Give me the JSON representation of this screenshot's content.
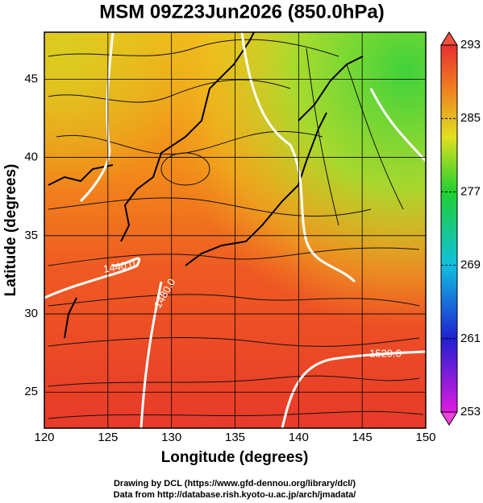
{
  "title": "MSM 09Z23Jun2026 (850.0hPa)",
  "x_label": "Longitude (degrees)",
  "y_label": "Latitude  (degrees)",
  "xlim": [
    120,
    150
  ],
  "ylim": [
    22.7,
    48
  ],
  "xticks": [
    120,
    125,
    130,
    135,
    140,
    145,
    150
  ],
  "yticks": [
    25,
    30,
    35,
    40,
    45
  ],
  "colorbar": {
    "lim": [
      253,
      293
    ],
    "ticks": [
      253,
      261,
      269,
      277,
      285,
      293
    ]
  },
  "contour_labels": [
    "1520.0",
    "1440.0",
    "1480.0"
  ],
  "credits": [
    "Drawing by DCL (https://www.gfd-dennou.org/library/dcl/)",
    "Data from http://database.rish.kyoto-u.ac.jp/arch/jmadata/"
  ]
}
